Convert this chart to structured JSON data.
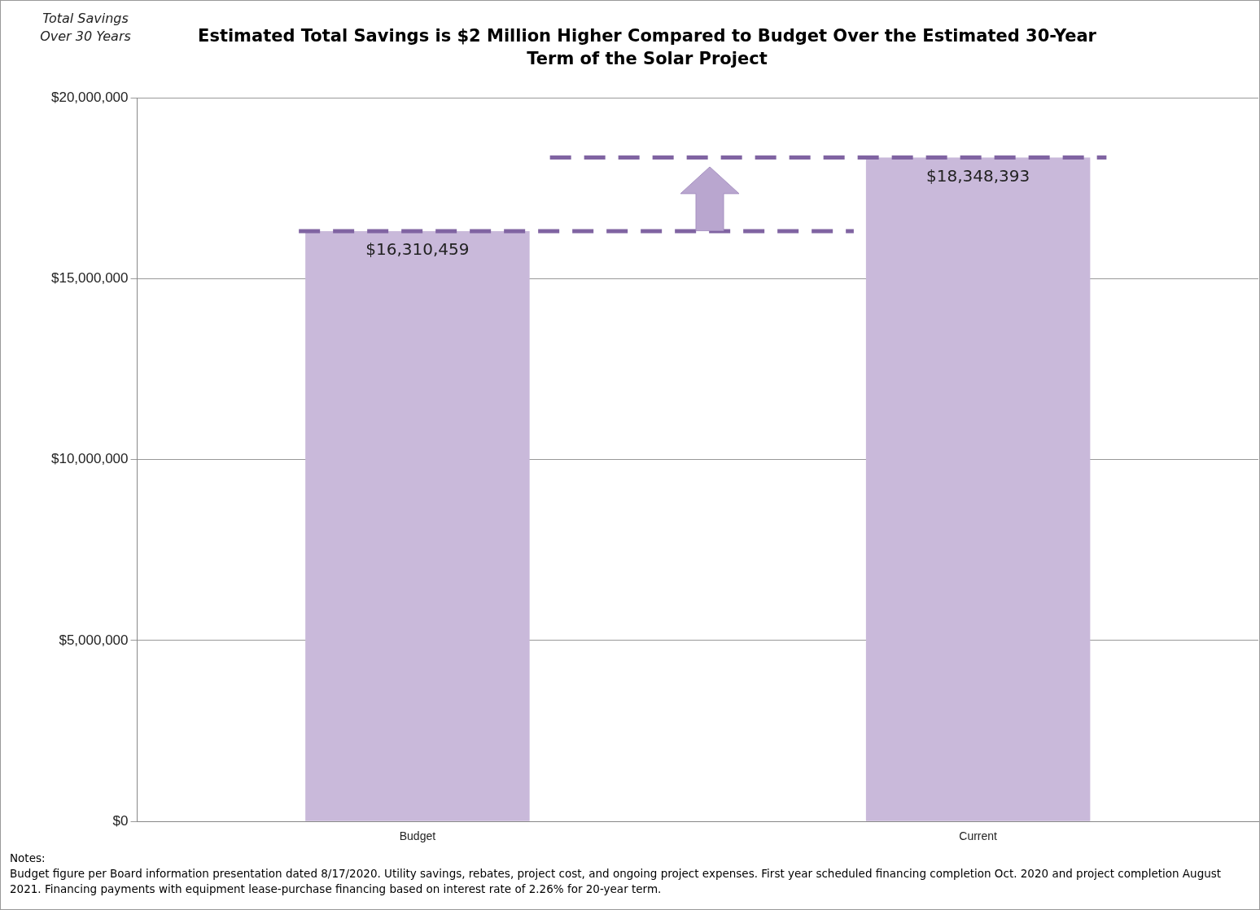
{
  "chart_data": {
    "type": "bar",
    "title": "Estimated Total Savings is $2 Million Higher Compared to Budget Over the Estimated 30-Year Term of the Solar Project",
    "ylabel": "Total Savings Over 30 Years",
    "categories": [
      "Budget",
      "Current"
    ],
    "values": [
      16310459,
      18348393
    ],
    "value_labels": [
      "$16,310,459",
      "$18,348,393"
    ],
    "color": "#c9b9da",
    "ylim": [
      0,
      20000000
    ],
    "yticks": [
      {
        "value": 0,
        "label": "$0"
      },
      {
        "value": 5000000,
        "label": "$5,000,000"
      },
      {
        "value": 10000000,
        "label": "$10,000,000"
      },
      {
        "value": 15000000,
        "label": "$15,000,000"
      },
      {
        "value": 20000000,
        "label": "$20,000,000"
      }
    ],
    "grid": "y",
    "legend": false,
    "ref_lines": [
      {
        "axis": "y",
        "value": 16310459,
        "color": "#8064a2",
        "line_style": "dashed"
      },
      {
        "axis": "y",
        "value": 18348393,
        "color": "#8064a2",
        "line_style": "dashed"
      }
    ],
    "annotations": [
      "Notes:",
      "Budget figure per Board information presentation dated 8/17/2020. Utility savings, rebates, project cost, and ongoing project expenses. First year scheduled financing completion Oct. 2020 and project completion August 2021. Financing payments with equipment lease-purchase financing based on interest rate of 2.26% for 20-year term."
    ]
  }
}
